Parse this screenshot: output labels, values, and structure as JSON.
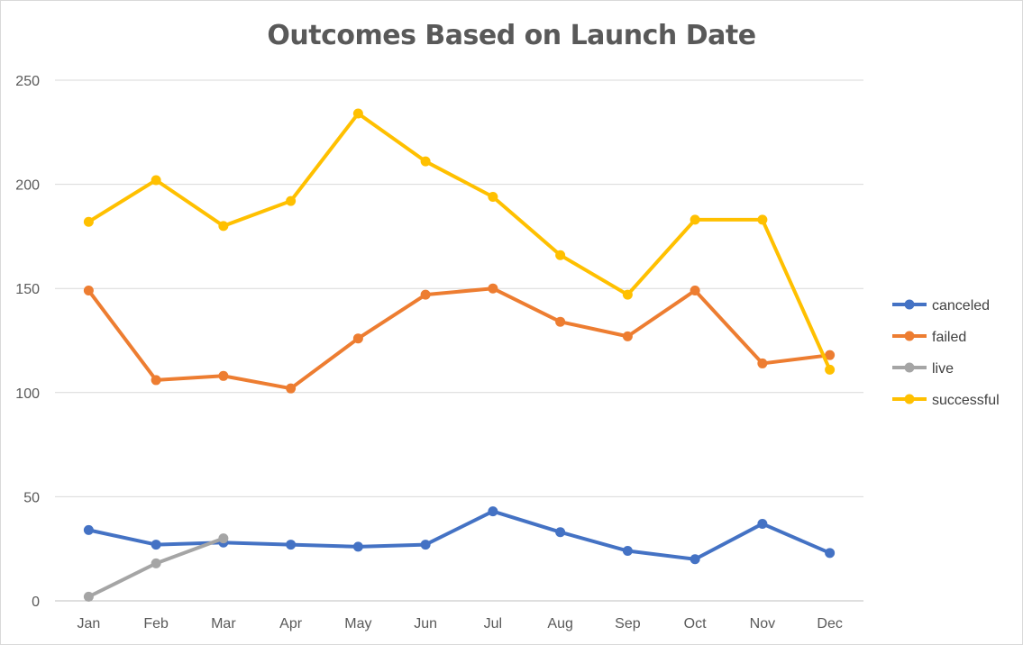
{
  "chart_data": {
    "type": "line",
    "title": "Outcomes Based on Launch Date",
    "xlabel": "",
    "ylabel": "",
    "categories": [
      "Jan",
      "Feb",
      "Mar",
      "Apr",
      "May",
      "Jun",
      "Jul",
      "Aug",
      "Sep",
      "Oct",
      "Nov",
      "Dec"
    ],
    "ylim": [
      0,
      250
    ],
    "yticks": [
      0,
      50,
      100,
      150,
      200,
      250
    ],
    "grid": true,
    "legend_position": "right",
    "series": [
      {
        "name": "canceled",
        "color": "#4472c4",
        "values": [
          34,
          27,
          28,
          27,
          26,
          27,
          43,
          33,
          24,
          20,
          37,
          23
        ]
      },
      {
        "name": "failed",
        "color": "#ed7d31",
        "values": [
          149,
          106,
          108,
          102,
          126,
          147,
          150,
          134,
          127,
          149,
          114,
          118
        ]
      },
      {
        "name": "live",
        "color": "#a5a5a5",
        "values": [
          2,
          18,
          30,
          null,
          null,
          null,
          null,
          null,
          null,
          null,
          null,
          null
        ]
      },
      {
        "name": "successful",
        "color": "#ffc000",
        "values": [
          182,
          202,
          180,
          192,
          234,
          211,
          194,
          166,
          147,
          183,
          183,
          111
        ]
      }
    ]
  }
}
